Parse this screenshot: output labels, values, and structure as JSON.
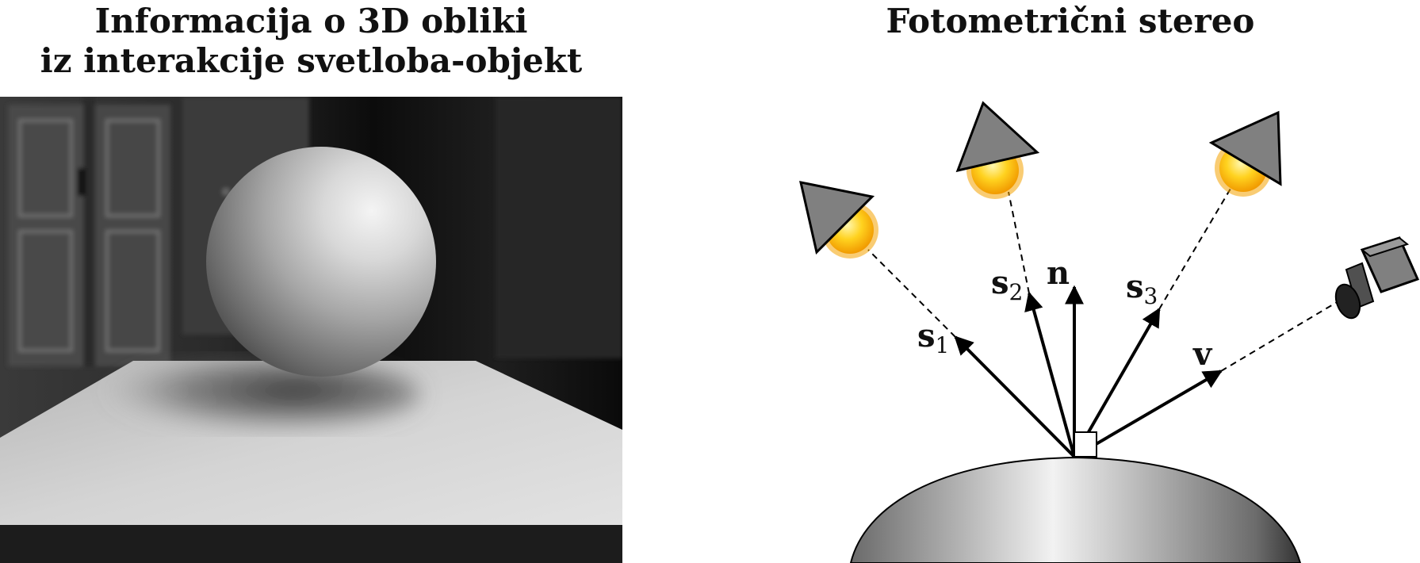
{
  "left_panel": {
    "title_line1": "Informacija o 3D obliki",
    "title_line2": "iz interakcije svetloba-objekt"
  },
  "right_panel": {
    "title": "Fotometrični stereo",
    "vectors": {
      "s1": {
        "base": "s",
        "sub": "1"
      },
      "s2": {
        "base": "s",
        "sub": "2"
      },
      "n": {
        "base": "n"
      },
      "s3": {
        "base": "s",
        "sub": "3"
      },
      "v": {
        "base": "v"
      }
    }
  },
  "colors": {
    "light_body": "#808080",
    "sun_core": "#ffd21f",
    "sun_rays": "#f4a300",
    "background": "#ffffff"
  },
  "icons": [
    "light-source-icon",
    "sun-icon",
    "camera-icon"
  ]
}
